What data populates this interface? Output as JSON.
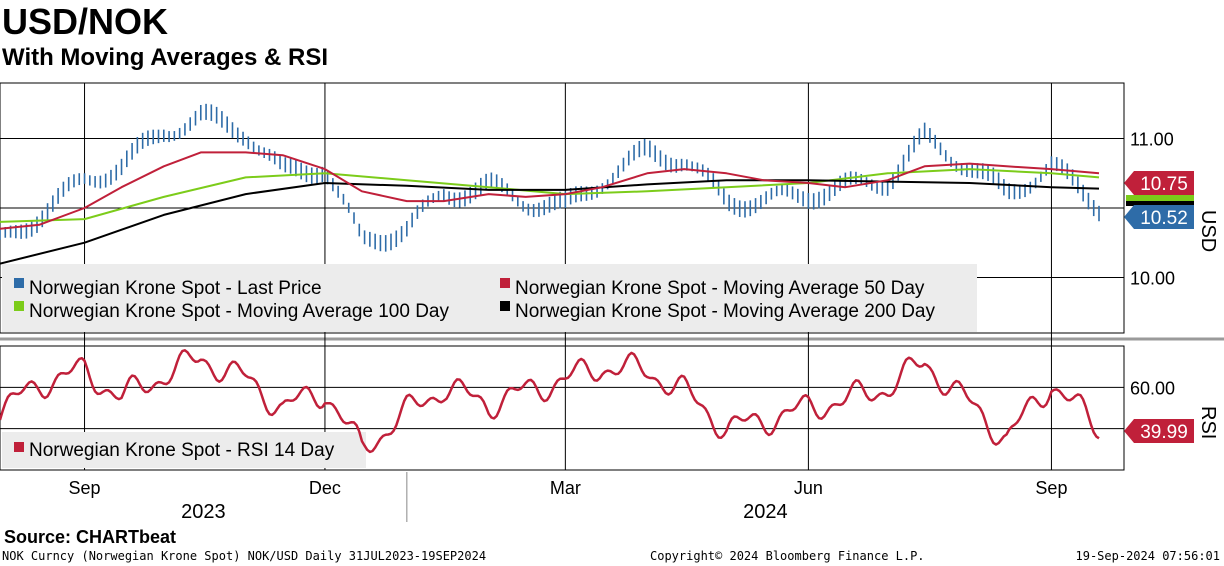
{
  "header": {
    "title": "USD/NOK",
    "subtitle": "With Moving Averages & RSI"
  },
  "footer": {
    "source": "Source:  CHARTbeat",
    "description": "NOK Curncy (Norwegian Krone Spot) NOK/USD  Daily 31JUL2023-19SEP2024",
    "copyright": "Copyright© 2024 Bloomberg Finance L.P.",
    "timestamp": "19-Sep-2024 07:56:01"
  },
  "colors": {
    "price": "#2e6ca8",
    "ma50": "#c0203a",
    "ma100": "#7ccc1a",
    "ma200": "#000000",
    "rsi": "#c0203a"
  },
  "chart_data": [
    {
      "type": "line",
      "panel": "price",
      "y_axis_label": "USD",
      "y_ticks": [
        "11.00",
        "10.00"
      ],
      "ylim": [
        9.6,
        11.4
      ],
      "x_tick_labels": [
        "Sep",
        "Dec",
        "Mar",
        "Jun",
        "Sep"
      ],
      "year_labels": [
        "2023",
        "2024"
      ],
      "last_value_labels": [
        "10.75",
        "10.52"
      ],
      "legend": [
        "Norwegian Krone Spot - Last Price",
        "Norwegian Krone Spot - Moving Average 50 Day",
        "Norwegian Krone Spot - Moving Average 100 Day",
        "Norwegian Krone Spot - Moving Average 200 Day"
      ],
      "series": [
        {
          "name": "Norwegian Krone Spot - Last Price",
          "style": "bars",
          "x": [
            "2023-07-31",
            "2023-08-15",
            "2023-09-01",
            "2023-09-15",
            "2023-10-01",
            "2023-10-15",
            "2023-11-01",
            "2023-11-15",
            "2023-12-01",
            "2023-12-15",
            "2024-01-01",
            "2024-01-15",
            "2024-02-01",
            "2024-02-15",
            "2024-03-01",
            "2024-03-15",
            "2024-04-01",
            "2024-04-15",
            "2024-05-01",
            "2024-05-15",
            "2024-06-01",
            "2024-06-15",
            "2024-07-01",
            "2024-07-15",
            "2024-08-01",
            "2024-08-15",
            "2024-09-01",
            "2024-09-19"
          ],
          "values": [
            10.25,
            10.45,
            10.7,
            10.8,
            11.05,
            11.15,
            11.05,
            10.75,
            10.8,
            10.25,
            10.35,
            10.6,
            10.65,
            10.55,
            10.5,
            10.7,
            10.9,
            10.85,
            10.55,
            10.55,
            10.6,
            10.65,
            10.7,
            11.0,
            10.8,
            10.6,
            10.8,
            10.52
          ]
        },
        {
          "name": "Norwegian Krone Spot - Moving Average 50 Day",
          "x": [
            "2023-07-31",
            "2023-08-15",
            "2023-09-01",
            "2023-09-15",
            "2023-10-01",
            "2023-10-15",
            "2023-11-01",
            "2023-11-15",
            "2023-12-01",
            "2023-12-15",
            "2024-01-01",
            "2024-01-15",
            "2024-02-01",
            "2024-02-15",
            "2024-03-01",
            "2024-03-15",
            "2024-04-01",
            "2024-04-15",
            "2024-05-01",
            "2024-05-15",
            "2024-06-01",
            "2024-06-15",
            "2024-07-01",
            "2024-07-15",
            "2024-08-01",
            "2024-08-15",
            "2024-09-01",
            "2024-09-19"
          ],
          "values": [
            10.35,
            10.38,
            10.5,
            10.65,
            10.8,
            10.9,
            10.9,
            10.88,
            10.78,
            10.62,
            10.55,
            10.55,
            10.6,
            10.58,
            10.6,
            10.65,
            10.75,
            10.78,
            10.75,
            10.7,
            10.68,
            10.65,
            10.7,
            10.8,
            10.82,
            10.8,
            10.78,
            10.75
          ]
        },
        {
          "name": "Norwegian Krone Spot - Moving Average 100 Day",
          "x": [
            "2023-07-31",
            "2023-09-01",
            "2023-10-01",
            "2023-11-01",
            "2023-12-01",
            "2024-01-01",
            "2024-02-01",
            "2024-03-01",
            "2024-04-01",
            "2024-05-01",
            "2024-06-01",
            "2024-07-01",
            "2024-08-01",
            "2024-09-01",
            "2024-09-19"
          ],
          "values": [
            10.4,
            10.42,
            10.58,
            10.72,
            10.75,
            10.7,
            10.65,
            10.6,
            10.62,
            10.65,
            10.68,
            10.75,
            10.78,
            10.75,
            10.72
          ]
        },
        {
          "name": "Norwegian Krone Spot - Moving Average 200 Day",
          "x": [
            "2023-07-31",
            "2023-09-01",
            "2023-10-01",
            "2023-11-01",
            "2023-12-01",
            "2024-01-01",
            "2024-02-01",
            "2024-03-01",
            "2024-04-01",
            "2024-05-01",
            "2024-06-01",
            "2024-07-01",
            "2024-08-01",
            "2024-09-01",
            "2024-09-19"
          ],
          "values": [
            10.1,
            10.25,
            10.45,
            10.6,
            10.68,
            10.66,
            10.63,
            10.63,
            10.67,
            10.7,
            10.7,
            10.69,
            10.68,
            10.65,
            10.64
          ]
        }
      ]
    },
    {
      "type": "line",
      "panel": "rsi",
      "y_axis_label": "RSI",
      "y_ticks": [
        "60.00"
      ],
      "ylim": [
        20,
        80
      ],
      "last_value_labels": [
        "39.99"
      ],
      "legend": [
        "Norwegian Krone Spot - RSI 14 Day"
      ],
      "series": [
        {
          "name": "Norwegian Krone Spot - RSI 14 Day",
          "x": [
            "2023-07-31",
            "2023-08-15",
            "2023-09-01",
            "2023-09-15",
            "2023-10-01",
            "2023-10-15",
            "2023-11-01",
            "2023-11-15",
            "2023-12-01",
            "2023-12-15",
            "2024-01-01",
            "2024-01-15",
            "2024-02-01",
            "2024-02-15",
            "2024-03-01",
            "2024-03-15",
            "2024-04-01",
            "2024-04-15",
            "2024-05-01",
            "2024-05-15",
            "2024-06-01",
            "2024-06-15",
            "2024-07-01",
            "2024-07-15",
            "2024-08-01",
            "2024-08-15",
            "2024-09-01",
            "2024-09-19"
          ],
          "values": [
            48,
            62,
            68,
            55,
            66,
            74,
            64,
            50,
            58,
            30,
            48,
            60,
            52,
            58,
            64,
            70,
            68,
            58,
            40,
            44,
            50,
            54,
            60,
            72,
            52,
            35,
            62,
            39.99
          ]
        }
      ]
    }
  ]
}
